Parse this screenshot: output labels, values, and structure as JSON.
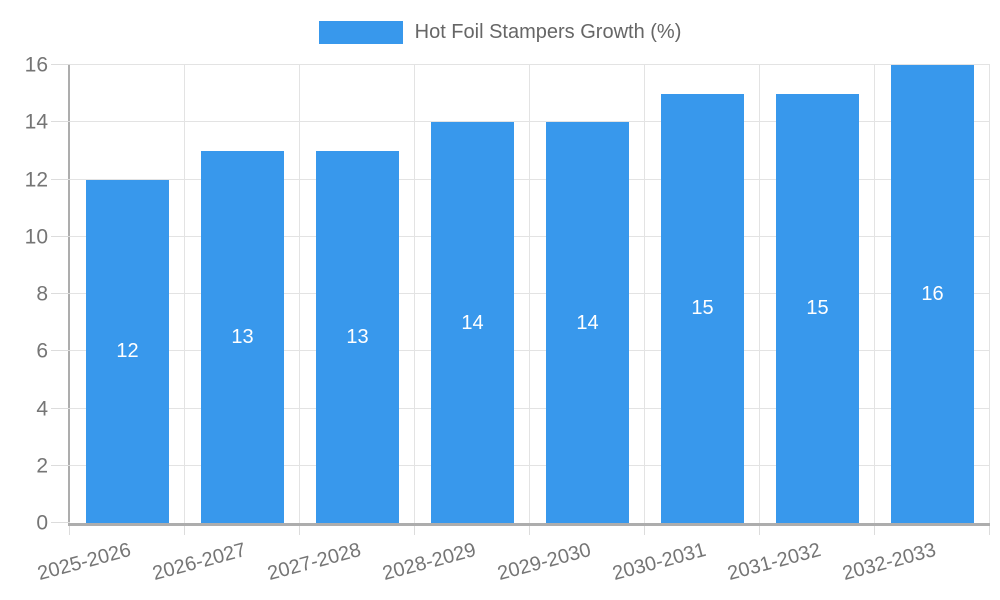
{
  "chart_data": {
    "type": "bar",
    "title": "",
    "legend_label": "Hot Foil Stampers Growth (%)",
    "legend_position": "top-center",
    "categories": [
      "2025-2026",
      "2026-2027",
      "2027-2028",
      "2028-2029",
      "2029-2030",
      "2030-2031",
      "2031-2032",
      "2032-2033"
    ],
    "values": [
      12,
      13,
      13,
      14,
      14,
      15,
      15,
      16
    ],
    "bar_value_labels": [
      "12",
      "13",
      "13",
      "14",
      "14",
      "15",
      "15",
      "16"
    ],
    "ylabel": "",
    "xlabel": "",
    "ylim": [
      0,
      16
    ],
    "yticks": [
      0,
      2,
      4,
      6,
      8,
      10,
      12,
      14,
      16
    ],
    "grid": true,
    "x_label_rotation_deg": -15,
    "colors": {
      "bar": "#3898EC",
      "bar_label_text": "#FFFFFF",
      "grid": "#E3E3E3",
      "tick_mark": "#DCDCDC",
      "axis_line": "#ADADAD",
      "tick_text": "#757575",
      "legend_text": "#666666",
      "background": "#FFFFFF"
    }
  }
}
